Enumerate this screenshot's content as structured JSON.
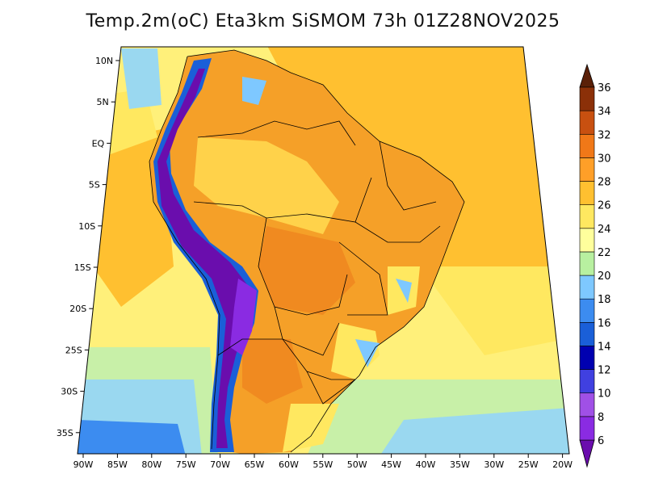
{
  "title": "Temp.2m(oC) Eta3km SiSMOM 73h 01Z28NOV2025",
  "map": {
    "lat_ticks": [
      "10N",
      "5N",
      "EQ",
      "5S",
      "10S",
      "15S",
      "20S",
      "25S",
      "30S",
      "35S"
    ],
    "lon_ticks": [
      "90W",
      "85W",
      "80W",
      "75W",
      "70W",
      "65W",
      "60W",
      "55W",
      "50W",
      "45W",
      "40W",
      "35W",
      "30W",
      "25W",
      "20W"
    ]
  },
  "colorbar": {
    "labels": [
      "6",
      "8",
      "10",
      "12",
      "14",
      "16",
      "18",
      "20",
      "22",
      "24",
      "26",
      "28",
      "30",
      "32",
      "34",
      "36"
    ],
    "colors": [
      "#6a0dad",
      "#8a2be2",
      "#a050e6",
      "#4040e0",
      "#0000b0",
      "#1a5fd8",
      "#3c8cf0",
      "#7ec8ff",
      "#b8f0a0",
      "#ffff9c",
      "#ffe860",
      "#ffc030",
      "#ff9f28",
      "#f07818",
      "#c85010",
      "#8b3008",
      "#5a2008"
    ]
  },
  "palette": {
    "ocean_cool": "#9ad8f0",
    "ocean_mild": "#c8f0a8",
    "ocean_warm": "#ffec70",
    "land_hot": "#f5a028",
    "andes": "#6a0dad",
    "border": "#000000"
  }
}
